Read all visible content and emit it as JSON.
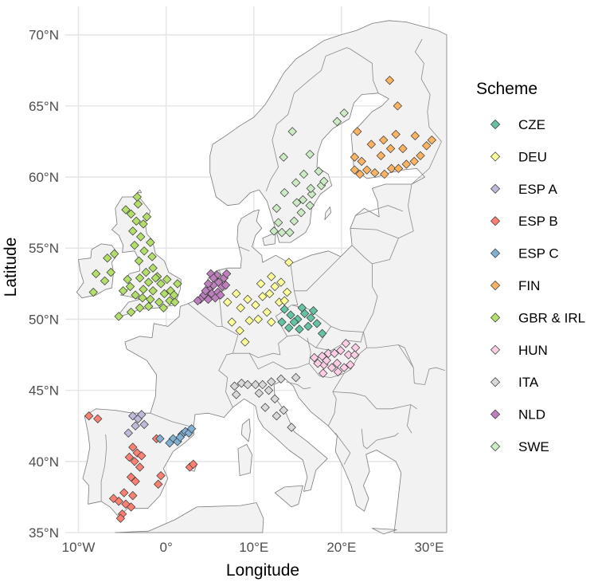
{
  "chart_data": {
    "type": "scatter",
    "xlabel": "Longitude",
    "ylabel": "Latitude",
    "xlim": [
      -11.5,
      32
    ],
    "ylim": [
      35,
      72
    ],
    "x_ticks": [
      "10°W",
      "0°",
      "10°E",
      "20°E",
      "30°E"
    ],
    "x_tick_values": [
      -10,
      0,
      10,
      20,
      30
    ],
    "y_ticks": [
      "35°N",
      "40°N",
      "45°N",
      "50°N",
      "55°N",
      "60°N",
      "65°N",
      "70°N"
    ],
    "y_tick_values": [
      35,
      40,
      45,
      50,
      55,
      60,
      65,
      70
    ],
    "grid": true,
    "legend": {
      "title": "Scheme",
      "placement": "right",
      "marker": "diamond"
    },
    "series": [
      {
        "name": "CZE",
        "color": "#66c2a5",
        "points": [
          [
            13.5,
            50.7
          ],
          [
            14.2,
            50.3
          ],
          [
            15.0,
            50.0
          ],
          [
            15.8,
            50.4
          ],
          [
            16.5,
            50.1
          ],
          [
            14.0,
            49.4
          ],
          [
            15.2,
            49.3
          ],
          [
            16.2,
            49.5
          ],
          [
            17.2,
            49.7
          ],
          [
            13.2,
            49.8
          ],
          [
            15.5,
            50.8
          ],
          [
            14.6,
            49.8
          ],
          [
            17.8,
            49.0
          ],
          [
            16.8,
            50.6
          ]
        ]
      },
      {
        "name": "DEU",
        "color": "#ffff99",
        "points": [
          [
            7.0,
            51.2
          ],
          [
            8.0,
            51.8
          ],
          [
            8.5,
            50.8
          ],
          [
            9.3,
            51.4
          ],
          [
            10.2,
            51.0
          ],
          [
            11.0,
            51.6
          ],
          [
            11.8,
            51.8
          ],
          [
            12.4,
            52.3
          ],
          [
            13.1,
            52.6
          ],
          [
            13.8,
            51.9
          ],
          [
            12.9,
            51.2
          ],
          [
            11.5,
            50.5
          ],
          [
            10.5,
            50.0
          ],
          [
            9.5,
            49.9
          ],
          [
            8.4,
            49.2
          ],
          [
            7.5,
            49.8
          ],
          [
            9.0,
            48.4
          ],
          [
            10.8,
            52.5
          ],
          [
            12.0,
            53.0
          ],
          [
            13.5,
            51.3
          ],
          [
            12.0,
            49.8
          ],
          [
            14.0,
            54.0
          ]
        ]
      },
      {
        "name": "ESP A",
        "color": "#bebada",
        "points": [
          [
            -3.8,
            43.2
          ],
          [
            -3.2,
            43.0
          ],
          [
            -2.8,
            43.3
          ],
          [
            -3.5,
            42.5
          ],
          [
            -2.5,
            42.6
          ],
          [
            -4.3,
            42.0
          ]
        ]
      },
      {
        "name": "ESP B",
        "color": "#fb8072",
        "points": [
          [
            -8.8,
            43.2
          ],
          [
            -7.8,
            43.0
          ],
          [
            -3.8,
            41.0
          ],
          [
            -3.3,
            40.6
          ],
          [
            -4.2,
            40.3
          ],
          [
            -3.6,
            40.0
          ],
          [
            -2.8,
            40.4
          ],
          [
            -3.0,
            39.6
          ],
          [
            -4.0,
            38.9
          ],
          [
            -3.5,
            38.6
          ],
          [
            -5.4,
            37.2
          ],
          [
            -4.6,
            37.0
          ],
          [
            -4.0,
            36.8
          ],
          [
            -5.0,
            36.3
          ],
          [
            -6.0,
            37.4
          ],
          [
            -3.8,
            37.6
          ],
          [
            -4.8,
            37.8
          ],
          [
            -0.9,
            38.4
          ],
          [
            -0.6,
            39.0
          ],
          [
            -1.1,
            41.6
          ],
          [
            2.7,
            39.6
          ],
          [
            3.1,
            39.8
          ],
          [
            -5.2,
            36.0
          ]
        ]
      },
      {
        "name": "ESP C",
        "color": "#80b1d3",
        "points": [
          [
            0.8,
            41.6
          ],
          [
            1.3,
            41.4
          ],
          [
            1.8,
            41.9
          ],
          [
            2.2,
            42.1
          ],
          [
            2.6,
            42.0
          ],
          [
            1.6,
            41.7
          ],
          [
            2.9,
            42.3
          ],
          [
            0.4,
            41.3
          ],
          [
            -0.7,
            41.6
          ]
        ]
      },
      {
        "name": "FIN",
        "color": "#fdb462",
        "points": [
          [
            21.5,
            61.4
          ],
          [
            22.3,
            61.1
          ],
          [
            22.9,
            60.5
          ],
          [
            23.8,
            60.3
          ],
          [
            24.9,
            60.2
          ],
          [
            25.7,
            60.6
          ],
          [
            26.5,
            60.6
          ],
          [
            27.4,
            60.9
          ],
          [
            28.3,
            61.1
          ],
          [
            29.0,
            61.5
          ],
          [
            29.7,
            62.2
          ],
          [
            30.3,
            62.6
          ],
          [
            24.8,
            62.6
          ],
          [
            25.6,
            62.0
          ],
          [
            26.2,
            63.0
          ],
          [
            23.4,
            62.3
          ],
          [
            22.1,
            60.2
          ],
          [
            28.4,
            62.9
          ],
          [
            26.4,
            65.0
          ],
          [
            25.5,
            66.8
          ],
          [
            21.8,
            63.2
          ],
          [
            21.5,
            60.5
          ],
          [
            24.5,
            61.5
          ],
          [
            27.0,
            62.0
          ]
        ]
      },
      {
        "name": "GBR & IRL",
        "color": "#b3de69",
        "points": [
          [
            -3.2,
            58.1
          ],
          [
            -4.0,
            57.4
          ],
          [
            -3.4,
            56.9
          ],
          [
            -2.6,
            56.7
          ],
          [
            -3.8,
            56.2
          ],
          [
            -2.9,
            55.8
          ],
          [
            -1.8,
            55.4
          ],
          [
            -2.5,
            54.8
          ],
          [
            -1.6,
            54.4
          ],
          [
            -3.1,
            54.1
          ],
          [
            -1.5,
            53.6
          ],
          [
            -2.3,
            53.3
          ],
          [
            -1.0,
            53.0
          ],
          [
            -2.0,
            52.6
          ],
          [
            -0.6,
            52.5
          ],
          [
            -1.5,
            52.0
          ],
          [
            -0.2,
            51.8
          ],
          [
            0.5,
            52.0
          ],
          [
            1.3,
            52.5
          ],
          [
            -2.7,
            51.5
          ],
          [
            -1.8,
            51.4
          ],
          [
            -0.8,
            51.2
          ],
          [
            0.4,
            51.3
          ],
          [
            1.0,
            51.2
          ],
          [
            -3.5,
            51.7
          ],
          [
            -4.1,
            52.3
          ],
          [
            -3.0,
            52.9
          ],
          [
            -4.9,
            52.0
          ],
          [
            -5.4,
            50.2
          ],
          [
            -4.0,
            50.5
          ],
          [
            -3.0,
            50.8
          ],
          [
            -6.3,
            53.3
          ],
          [
            -7.0,
            52.7
          ],
          [
            -8.3,
            51.9
          ],
          [
            -6.7,
            54.3
          ],
          [
            -8.0,
            53.2
          ],
          [
            -5.9,
            54.6
          ],
          [
            -2.2,
            57.2
          ],
          [
            -3.3,
            58.6
          ],
          [
            -4.6,
            57.7
          ],
          [
            -3.6,
            55.2
          ],
          [
            -2.0,
            50.9
          ],
          [
            -0.3,
            50.8
          ],
          [
            0.1,
            52.8
          ],
          [
            -4.4,
            52.8
          ],
          [
            -2.6,
            52.1
          ],
          [
            0.9,
            51.7
          ],
          [
            -1.2,
            52.9
          ]
        ]
      },
      {
        "name": "HUN",
        "color": "#fccde5",
        "points": [
          [
            17.8,
            47.4
          ],
          [
            18.5,
            47.6
          ],
          [
            19.2,
            47.6
          ],
          [
            19.9,
            47.8
          ],
          [
            20.8,
            47.5
          ],
          [
            21.5,
            47.5
          ],
          [
            18.0,
            46.8
          ],
          [
            18.9,
            46.6
          ],
          [
            19.6,
            46.3
          ],
          [
            20.3,
            46.6
          ],
          [
            17.3,
            46.9
          ],
          [
            17.9,
            46.2
          ],
          [
            21.0,
            46.8
          ],
          [
            20.5,
            48.3
          ],
          [
            19.5,
            46.9
          ],
          [
            16.9,
            47.3
          ],
          [
            18.3,
            47.1
          ],
          [
            21.6,
            48.0
          ]
        ]
      },
      {
        "name": "ITA",
        "color": "#d9d9d9",
        "points": [
          [
            7.8,
            45.3
          ],
          [
            8.6,
            45.5
          ],
          [
            9.3,
            45.4
          ],
          [
            10.2,
            45.4
          ],
          [
            11.0,
            45.4
          ],
          [
            12.0,
            45.6
          ],
          [
            13.1,
            45.8
          ],
          [
            11.7,
            45.0
          ],
          [
            12.4,
            44.4
          ],
          [
            11.3,
            43.8
          ],
          [
            12.6,
            43.2
          ],
          [
            13.4,
            43.6
          ],
          [
            14.3,
            42.4
          ],
          [
            10.6,
            44.8
          ],
          [
            14.8,
            45.9
          ],
          [
            8.0,
            44.7
          ]
        ]
      },
      {
        "name": "NLD",
        "color": "#bc80bd",
        "points": [
          [
            4.3,
            51.7
          ],
          [
            4.9,
            52.1
          ],
          [
            5.4,
            52.4
          ],
          [
            6.0,
            52.6
          ],
          [
            6.6,
            52.9
          ],
          [
            5.8,
            53.1
          ],
          [
            4.8,
            52.5
          ],
          [
            5.2,
            51.8
          ],
          [
            5.9,
            51.9
          ],
          [
            6.4,
            52.3
          ],
          [
            4.5,
            52.0
          ],
          [
            5.6,
            51.5
          ],
          [
            6.9,
            53.2
          ],
          [
            5.1,
            53.2
          ],
          [
            3.9,
            51.4
          ],
          [
            6.2,
            51.7
          ],
          [
            4.8,
            51.4
          ],
          [
            5.4,
            52.9
          ],
          [
            3.6,
            51.3
          ],
          [
            6.8,
            52.4
          ]
        ]
      },
      {
        "name": "SWE",
        "color": "#ccebc5",
        "points": [
          [
            13.2,
            56.1
          ],
          [
            14.1,
            56.1
          ],
          [
            12.8,
            56.8
          ],
          [
            14.6,
            56.9
          ],
          [
            15.4,
            57.5
          ],
          [
            16.4,
            58.0
          ],
          [
            15.6,
            58.4
          ],
          [
            16.6,
            58.8
          ],
          [
            17.7,
            59.4
          ],
          [
            18.0,
            59.7
          ],
          [
            17.4,
            60.4
          ],
          [
            14.8,
            59.6
          ],
          [
            13.5,
            58.9
          ],
          [
            12.6,
            57.8
          ],
          [
            13.4,
            61.4
          ],
          [
            14.4,
            63.2
          ],
          [
            16.4,
            61.6
          ],
          [
            19.5,
            63.9
          ],
          [
            20.3,
            64.5
          ],
          [
            12.3,
            56.2
          ],
          [
            15.7,
            60.2
          ],
          [
            16.5,
            59.2
          ],
          [
            14.9,
            58.2
          ]
        ]
      }
    ]
  }
}
